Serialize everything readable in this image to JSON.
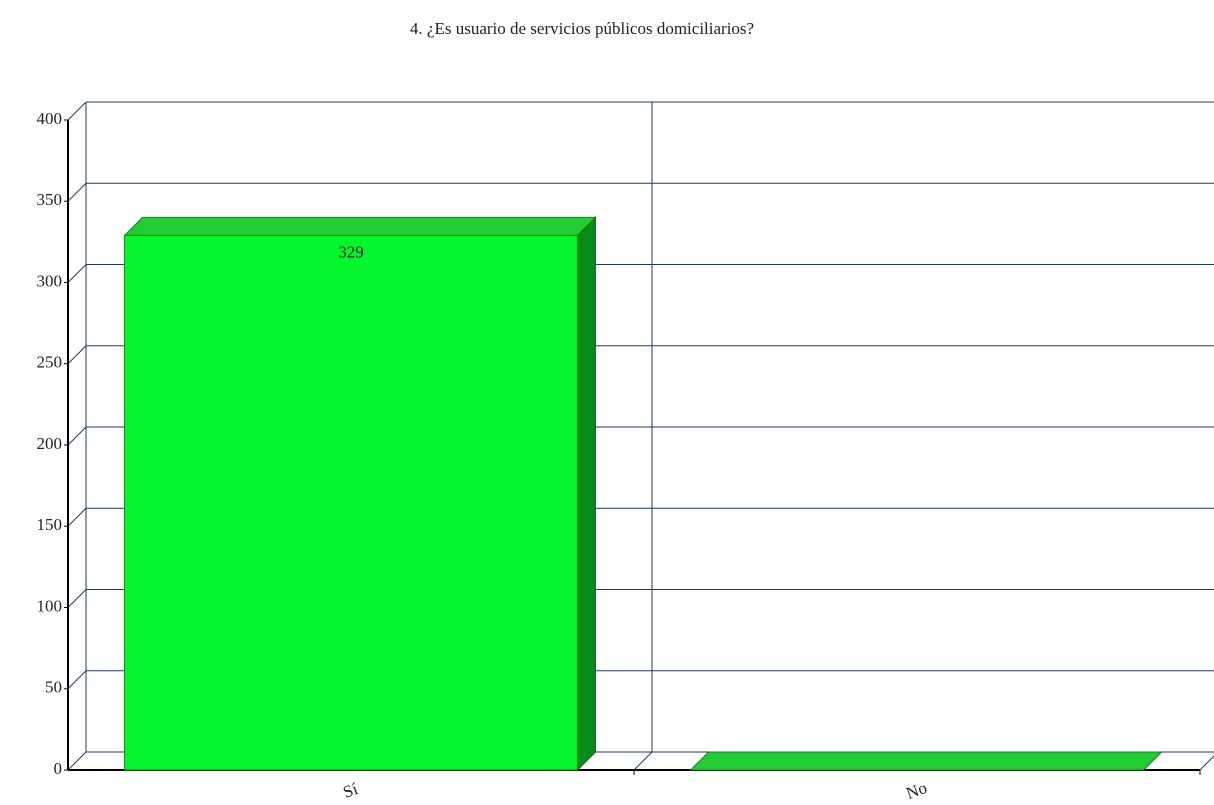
{
  "chart_data": {
    "type": "bar3d",
    "title": "4. ¿Es usuario de servicios públicos domiciliarios?",
    "categories": [
      "Sí",
      "No"
    ],
    "values": [
      329,
      0
    ],
    "color": "#05f52c",
    "ylim": [
      0,
      400
    ],
    "yticks": [
      0,
      50,
      100,
      150,
      200,
      250,
      300,
      350,
      400
    ],
    "grid": true
  }
}
